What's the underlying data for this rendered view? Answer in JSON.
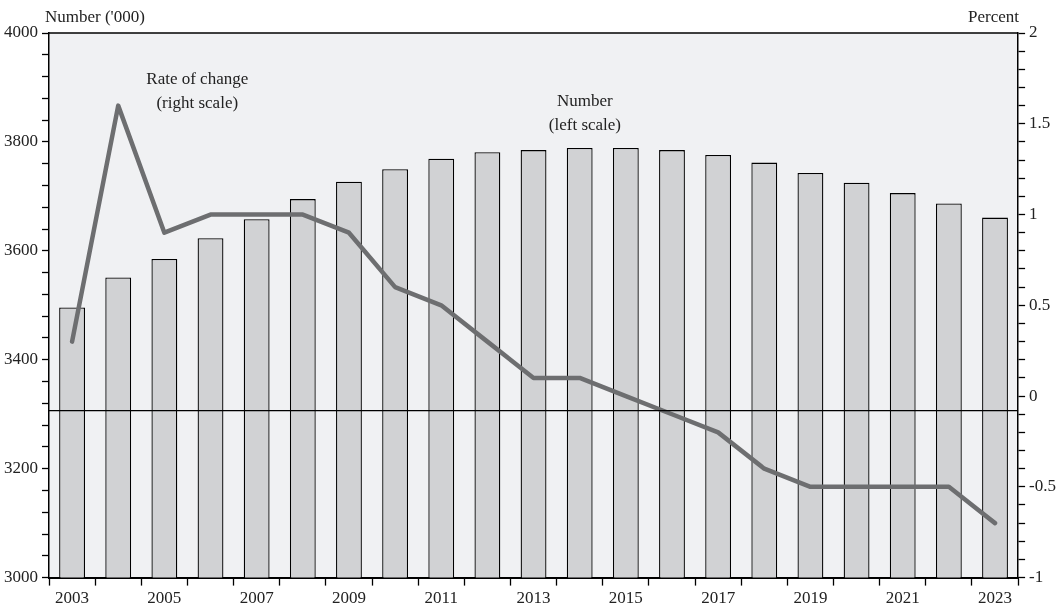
{
  "chart_data": {
    "type": "bar",
    "ylabel": "Number ('000)",
    "y2label": "Percent",
    "categories": [
      "2003",
      null,
      "2005",
      null,
      "2007",
      null,
      "2009",
      null,
      "2011",
      null,
      "2013",
      null,
      "2015",
      null,
      "2017",
      null,
      "2019",
      null,
      "2021",
      null,
      "2023"
    ],
    "series": [
      {
        "color": "#d1d2d4",
        "values": [
          3496,
          3551,
          3585,
          3623,
          3658,
          3695,
          3727,
          3750,
          3769,
          3781,
          3785,
          3789,
          3789,
          3785,
          3776,
          3762,
          3743,
          3725,
          3706,
          3687,
          3661
        ]
      },
      {
        "type": "line",
        "axis": "y2",
        "color": "#6d6e70",
        "values": [
          0.3,
          1.6,
          0.9,
          1.0,
          1.0,
          1.0,
          0.9,
          0.6,
          0.5,
          0.3,
          0.1,
          0.1,
          0.0,
          -0.1,
          -0.2,
          -0.4,
          -0.5,
          -0.5,
          -0.5,
          -0.5,
          -0.7
        ]
      }
    ],
    "ylim": [
      3000,
      4000
    ],
    "yticks": [
      3000,
      {
        "value": 3040,
        "label": null
      },
      {
        "value": 3080,
        "label": null
      },
      {
        "value": 3120,
        "label": null
      },
      {
        "value": 3160,
        "label": null
      },
      3200,
      {
        "value": 3240,
        "label": null
      },
      {
        "value": 3280,
        "label": null
      },
      {
        "value": 3320,
        "label": null
      },
      {
        "value": 3360,
        "label": null
      },
      3400,
      {
        "value": 3440,
        "label": null
      },
      {
        "value": 3480,
        "label": null
      },
      {
        "value": 3520,
        "label": null
      },
      {
        "value": 3560,
        "label": null
      },
      3600,
      {
        "value": 3640,
        "label": null
      },
      {
        "value": 3680,
        "label": null
      },
      {
        "value": 3720,
        "label": null
      },
      {
        "value": 3760,
        "label": null
      },
      3800,
      {
        "value": 3840,
        "label": null
      },
      {
        "value": 3880,
        "label": null
      },
      {
        "value": 3920,
        "label": null
      },
      {
        "value": 3960,
        "label": null
      },
      4000
    ],
    "y2lim": [
      -1,
      2
    ],
    "y2ticks": [
      -1,
      {
        "value": -0.9,
        "label": null
      },
      {
        "value": -0.8,
        "label": null
      },
      {
        "value": -0.7,
        "label": null
      },
      {
        "value": -0.6,
        "label": null
      },
      -0.5,
      {
        "value": -0.4,
        "label": null
      },
      {
        "value": -0.3,
        "label": null
      },
      {
        "value": -0.2,
        "label": null
      },
      {
        "value": -0.1,
        "label": null
      },
      0,
      {
        "value": 0.1,
        "label": null
      },
      {
        "value": 0.2,
        "label": null
      },
      {
        "value": 0.3,
        "label": null
      },
      {
        "value": 0.4,
        "label": null
      },
      0.5,
      {
        "value": 0.6,
        "label": null
      },
      {
        "value": 0.7,
        "label": null
      },
      {
        "value": 0.8,
        "label": null
      },
      {
        "value": 0.9,
        "label": null
      },
      1,
      {
        "value": 1.1,
        "label": null
      },
      {
        "value": 1.2,
        "label": null
      },
      {
        "value": 1.3,
        "label": null
      },
      {
        "value": 1.4,
        "label": null
      },
      1.5,
      {
        "value": 1.6,
        "label": null
      },
      {
        "value": 1.7,
        "label": null
      },
      {
        "value": 1.8,
        "label": null
      },
      {
        "value": 1.9,
        "label": null
      },
      2
    ],
    "ref_lines": [
      {
        "axis": "y2",
        "value": -0.08,
        "color": "#000000"
      }
    ],
    "annotations": [
      "Rate of change\n(right scale)",
      "Number\n(left scale)"
    ],
    "grid": false,
    "legend": false,
    "marker": "none",
    "line_style": "solid"
  }
}
